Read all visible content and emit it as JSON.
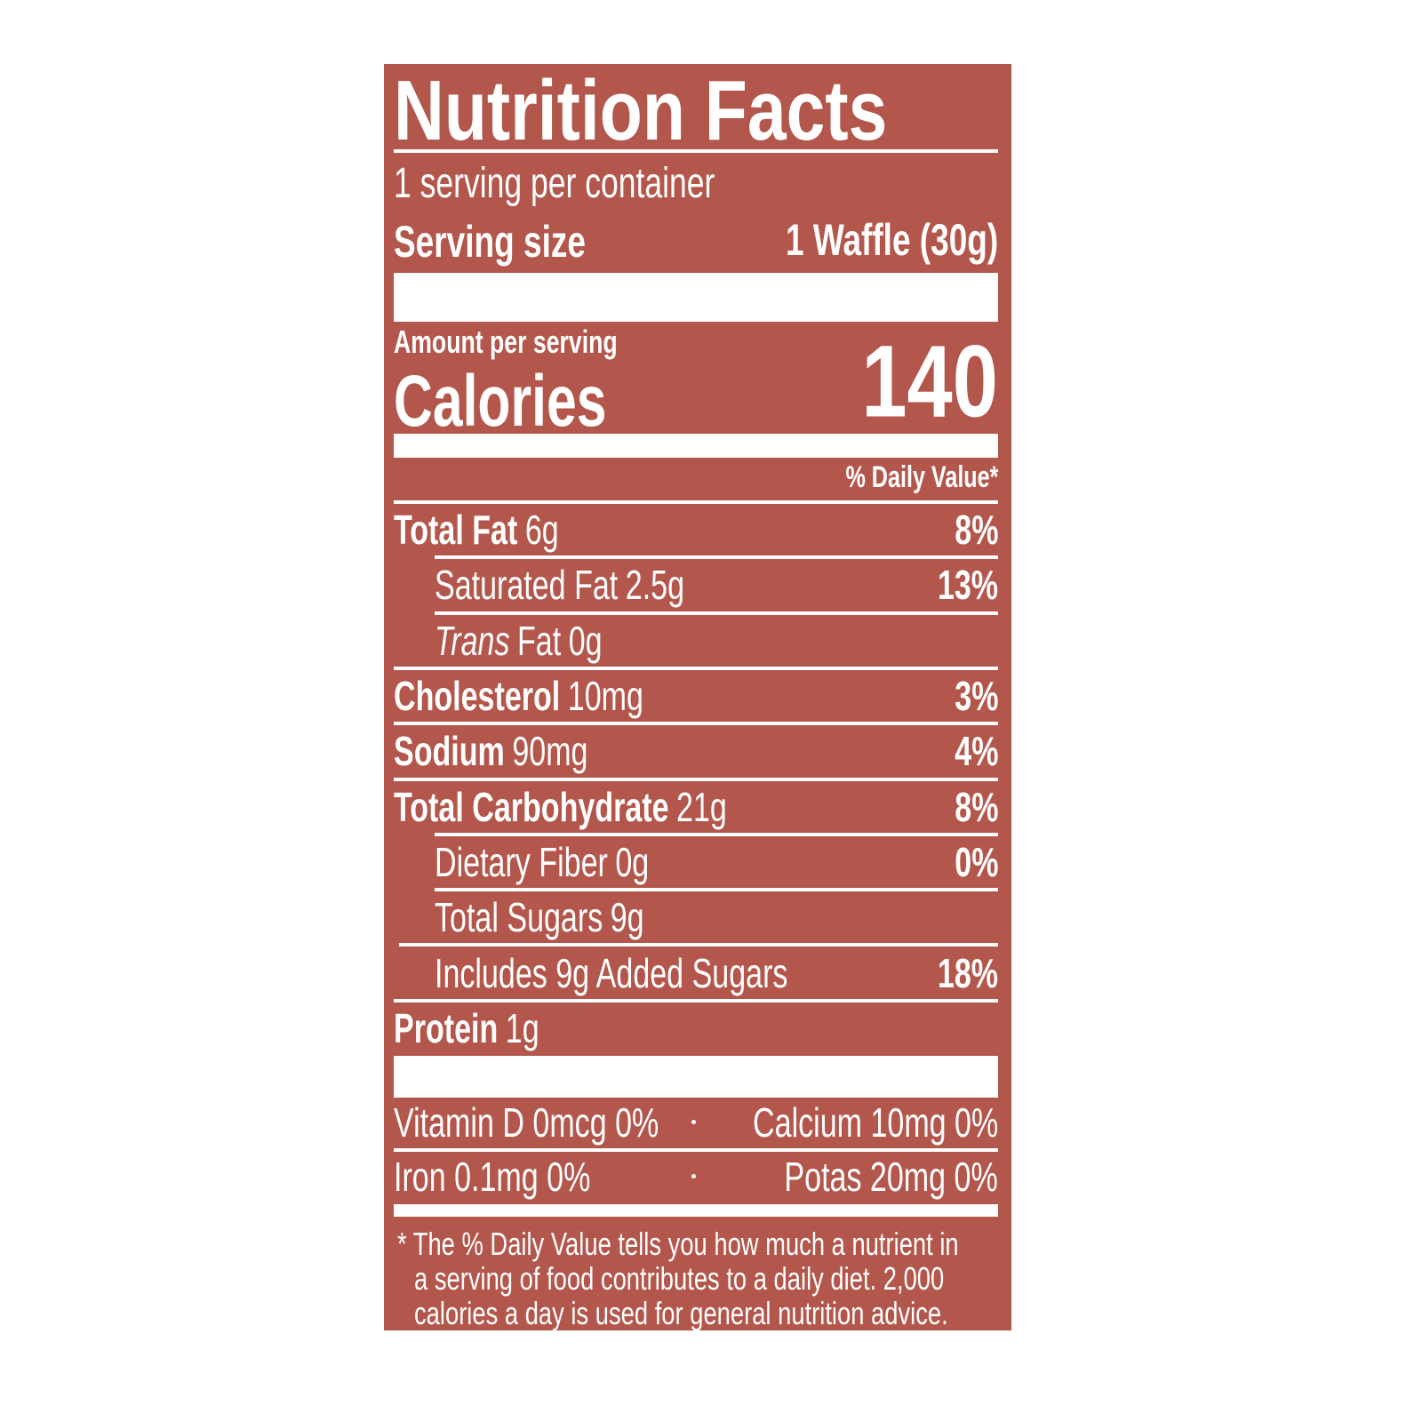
{
  "title": "Nutrition Facts",
  "servings": "1 serving per container",
  "serving_size": {
    "label": "Serving size",
    "value": "1 Waffle (30g)"
  },
  "amount_per_serving": "Amount per serving",
  "calories": {
    "label": "Calories",
    "value": "140"
  },
  "daily_value_header": "% Daily Value*",
  "nutrients": [
    {
      "name": "Total Fat",
      "amount": "6g",
      "dv": "8%"
    },
    {
      "name": "Saturated Fat",
      "amount": "2.5g",
      "dv": "13%"
    },
    {
      "prefix": "Trans",
      "name": "Fat",
      "amount": "0g"
    },
    {
      "name": "Cholesterol",
      "amount": "10mg",
      "dv": "3%"
    },
    {
      "name": "Sodium",
      "amount": "90mg",
      "dv": "4%"
    },
    {
      "name": "Total Carbohydrate",
      "amount": "21g",
      "dv": "8%"
    },
    {
      "name": "Dietary Fiber",
      "amount": "0g",
      "dv": "0%"
    },
    {
      "name": "Total Sugars",
      "amount": "9g"
    },
    {
      "name": "Includes 9g Added Sugars",
      "dv": "18%"
    },
    {
      "name": "Protein",
      "amount": "1g"
    }
  ],
  "vitamins": [
    [
      "Vitamin D 0mcg 0%",
      "Calcium 10mg 0%"
    ],
    [
      "Iron 0.1mg 0%",
      "Potas 20mg 0%"
    ]
  ],
  "footnote": [
    "* The % Daily Value tells you how much a nutrient in",
    "a serving of food contributes to a daily diet. 2,000",
    "calories a day is used for general nutrition advice."
  ]
}
